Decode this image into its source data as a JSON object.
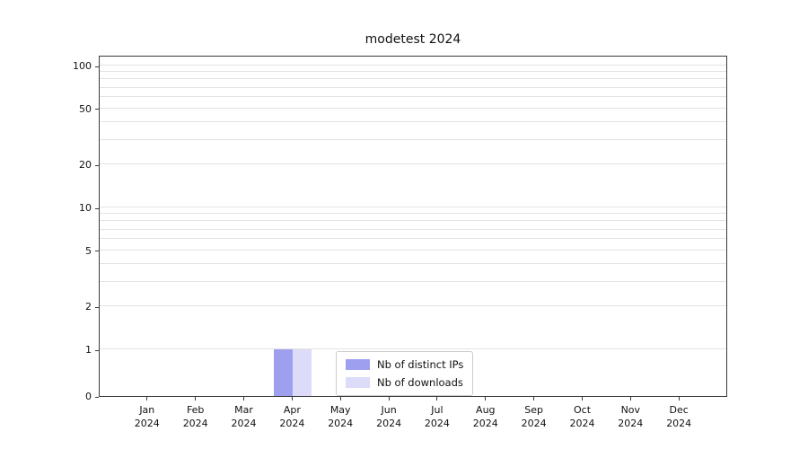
{
  "figure": {
    "background": "#ffffff"
  },
  "chart_data": {
    "type": "bar",
    "title": "modetest 2024",
    "categories": [
      "Jan",
      "Feb",
      "Mar",
      "Apr",
      "May",
      "Jun",
      "Jul",
      "Aug",
      "Sep",
      "Oct",
      "Nov",
      "Dec"
    ],
    "x_year": "2024",
    "series": [
      {
        "name": "Nb of distinct IPs",
        "color": "#9f9fef",
        "values": [
          0,
          0,
          0,
          1,
          0,
          0,
          0,
          0,
          0,
          0,
          0,
          0
        ]
      },
      {
        "name": "Nb of downloads",
        "color": "#dcdcf8",
        "values": [
          0,
          0,
          0,
          1,
          0,
          0,
          0,
          0,
          0,
          0,
          0,
          0
        ]
      }
    ],
    "yscale": "symlog",
    "yticks": [
      0,
      1,
      2,
      5,
      10,
      20,
      50,
      100
    ],
    "minor_gridlines": [
      3,
      4,
      6,
      7,
      8,
      9,
      30,
      40,
      60,
      70,
      80,
      90
    ],
    "ylim": [
      0,
      115
    ],
    "xlabel": "",
    "ylabel": "",
    "grid": "horizontal",
    "legend_position": "lower center inside"
  }
}
